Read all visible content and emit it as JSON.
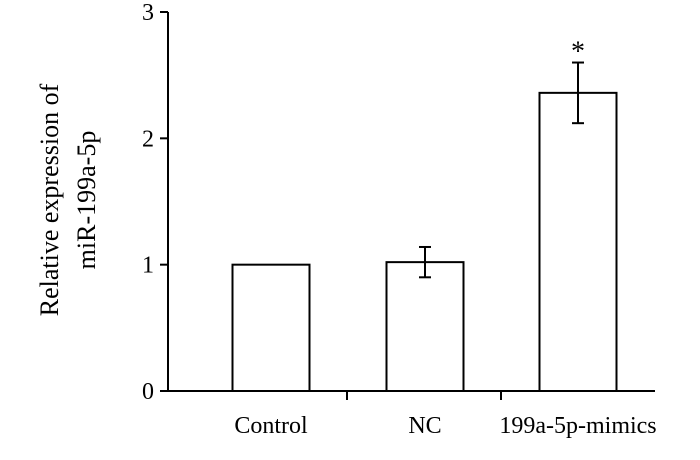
{
  "chart_data": {
    "type": "bar",
    "title": "",
    "xlabel": "",
    "ylabel_lines": [
      "Relative expression of",
      "miR-199a-5p"
    ],
    "categories": [
      "Control",
      "NC",
      "199a-5p-mimics"
    ],
    "values": [
      1.0,
      1.02,
      2.36
    ],
    "error": [
      0.0,
      0.12,
      0.24
    ],
    "annotations": [
      "",
      "",
      "*"
    ],
    "ylim": [
      0,
      3
    ],
    "yticks": [
      0,
      1,
      2,
      3
    ],
    "ytick_labels": [
      "0",
      "1",
      "2",
      "3"
    ],
    "grid": false,
    "legend": "none",
    "bar_fill": "#ffffff",
    "bar_stroke": "#000000",
    "axis_color": "#000000"
  }
}
